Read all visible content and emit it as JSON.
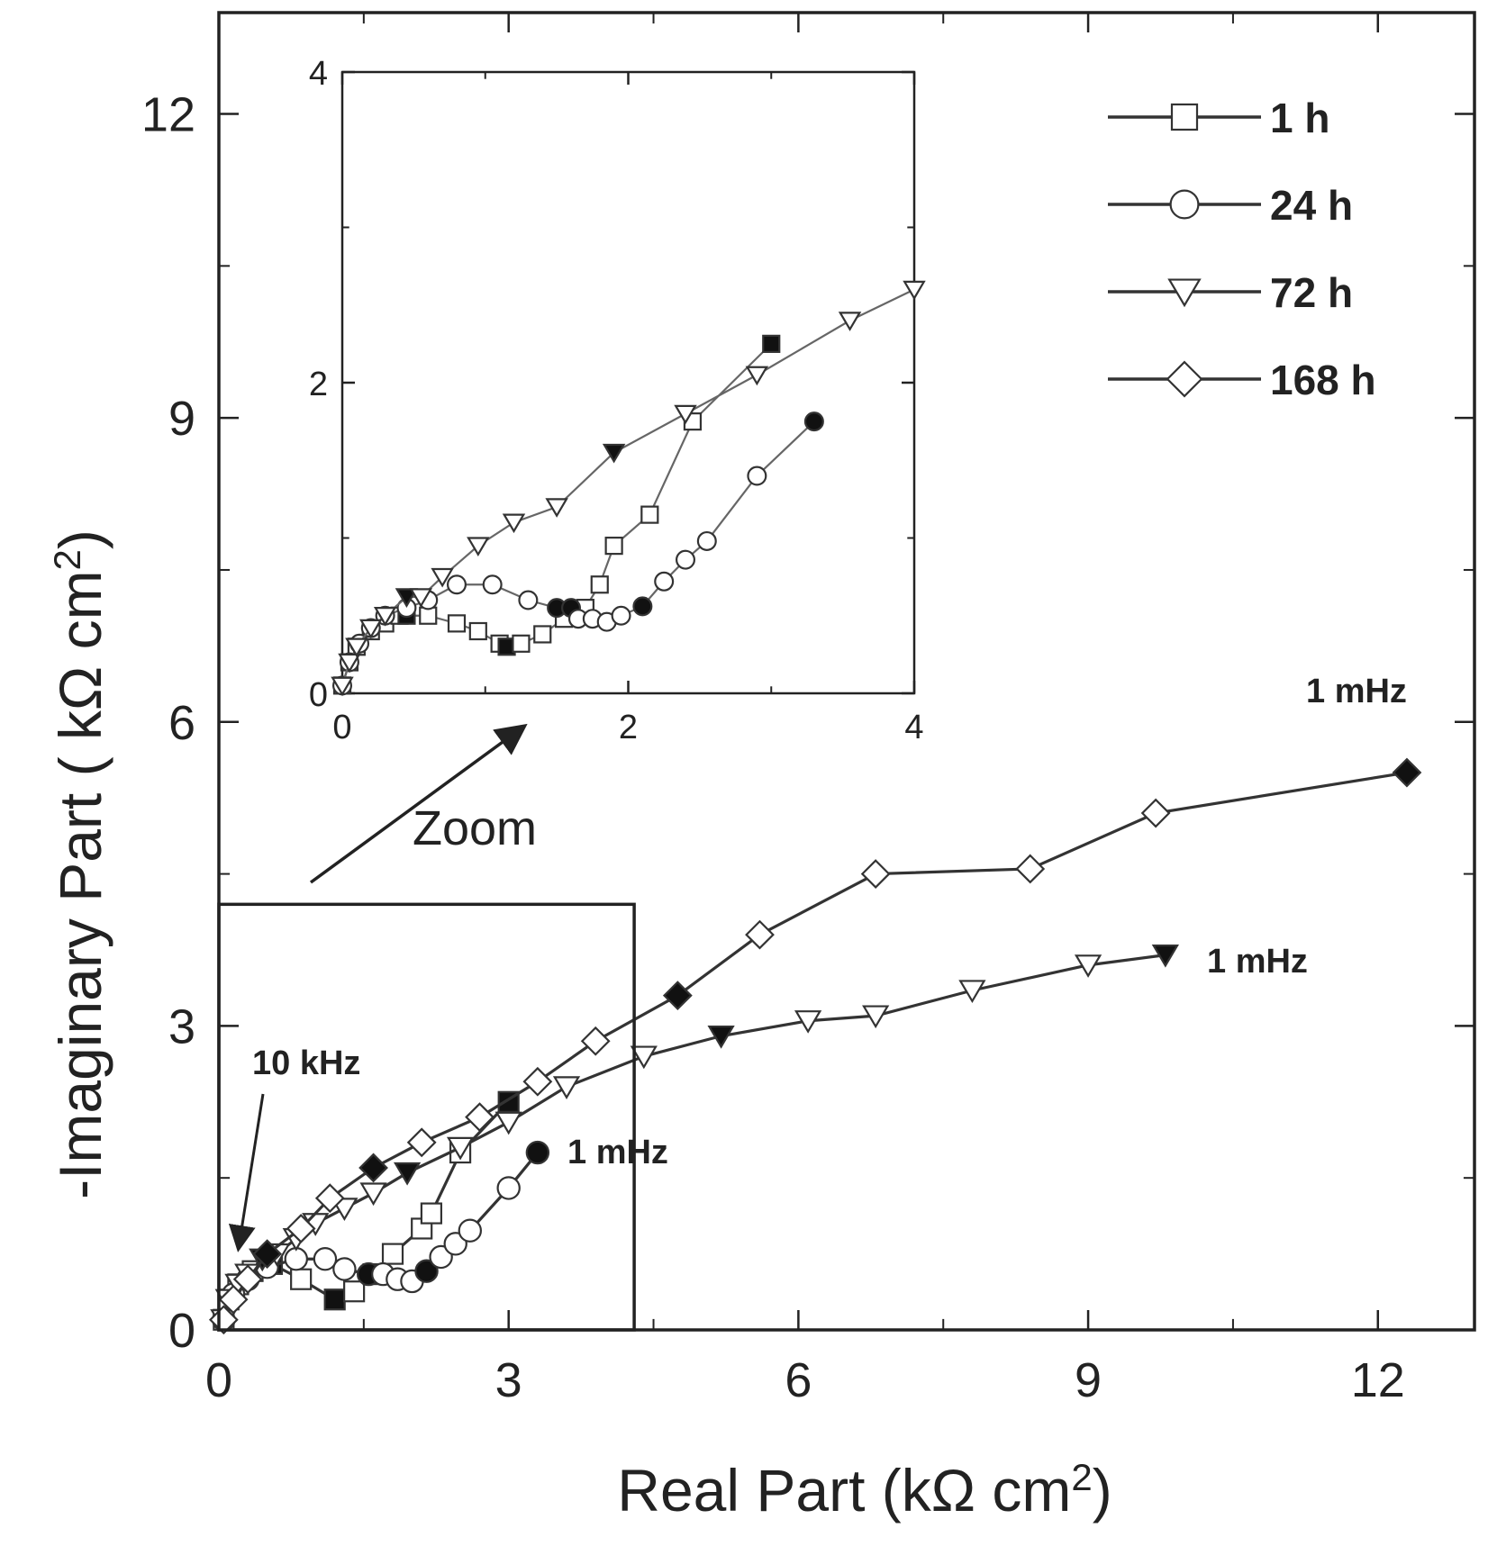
{
  "chart_data": [
    {
      "type": "line",
      "role": "main",
      "xlabel": "Real Part (kΩ cm²)",
      "ylabel": "-Imaginary Part ( kΩ cm²)",
      "xlim": [
        0,
        13
      ],
      "ylim": [
        0,
        13
      ],
      "xticks": [
        "0",
        "3",
        "6",
        "9",
        "12"
      ],
      "yticks": [
        "0",
        "3",
        "6",
        "9",
        "12"
      ],
      "legend": [
        "1 h",
        "24 h",
        "72 h",
        "168 h"
      ],
      "legend_position": "top-right",
      "series": [
        {
          "name": "1 h",
          "marker": "square",
          "x": [
            0.05,
            0.1,
            0.2,
            0.35,
            0.55,
            0.85,
            1.2,
            1.4,
            1.6,
            1.8,
            2.1,
            2.2,
            2.5,
            3.0
          ],
          "y": [
            0.1,
            0.3,
            0.45,
            0.58,
            0.65,
            0.5,
            0.3,
            0.38,
            0.55,
            0.75,
            1.0,
            1.15,
            1.75,
            2.25
          ],
          "filled": [
            false,
            false,
            false,
            false,
            true,
            false,
            true,
            false,
            false,
            false,
            false,
            false,
            false,
            true
          ]
        },
        {
          "name": "24 h",
          "marker": "circle",
          "x": [
            0.05,
            0.15,
            0.3,
            0.5,
            0.8,
            1.1,
            1.3,
            1.55,
            1.7,
            1.85,
            2.0,
            2.15,
            2.3,
            2.45,
            2.6,
            3.0,
            3.3
          ],
          "y": [
            0.1,
            0.35,
            0.5,
            0.62,
            0.7,
            0.7,
            0.6,
            0.55,
            0.55,
            0.5,
            0.48,
            0.58,
            0.72,
            0.85,
            0.98,
            1.4,
            1.75
          ],
          "filled": [
            false,
            false,
            false,
            false,
            false,
            false,
            false,
            true,
            false,
            false,
            false,
            true,
            false,
            false,
            false,
            false,
            true
          ]
        },
        {
          "name": "72 h",
          "marker": "triangle-down",
          "x": [
            0.05,
            0.1,
            0.2,
            0.3,
            0.45,
            0.6,
            0.8,
            1.0,
            1.3,
            1.6,
            1.95,
            2.5,
            3.0,
            3.6,
            4.4,
            5.2,
            6.1,
            6.8,
            7.8,
            9.0,
            9.8
          ],
          "y": [
            0.1,
            0.3,
            0.45,
            0.55,
            0.7,
            0.75,
            0.9,
            1.05,
            1.2,
            1.35,
            1.55,
            1.8,
            2.05,
            2.4,
            2.7,
            2.9,
            3.05,
            3.1,
            3.35,
            3.6,
            3.7
          ],
          "filled": [
            false,
            false,
            false,
            false,
            true,
            false,
            false,
            false,
            false,
            false,
            true,
            false,
            false,
            false,
            false,
            true,
            false,
            false,
            false,
            false,
            true
          ]
        },
        {
          "name": "168 h",
          "marker": "diamond",
          "x": [
            0.05,
            0.15,
            0.3,
            0.5,
            0.85,
            1.15,
            1.6,
            2.1,
            2.7,
            3.3,
            3.9,
            4.75,
            5.6,
            6.8,
            8.4,
            9.7,
            12.3
          ],
          "y": [
            0.1,
            0.3,
            0.5,
            0.75,
            1.0,
            1.3,
            1.6,
            1.85,
            2.1,
            2.45,
            2.85,
            3.3,
            3.9,
            4.5,
            4.55,
            5.1,
            5.5
          ],
          "filled": [
            false,
            false,
            false,
            true,
            false,
            false,
            true,
            false,
            false,
            false,
            false,
            true,
            false,
            false,
            false,
            false,
            true
          ]
        }
      ],
      "annotations": [
        {
          "text": "10 kHz",
          "x": 0.2,
          "y": 0.7
        },
        {
          "text": "1 mHz",
          "x": 3.3,
          "y": 1.75
        },
        {
          "text": "1 mHz",
          "x": 9.8,
          "y": 3.7
        },
        {
          "text": "1 mHz",
          "x": 12.3,
          "y": 5.5
        },
        {
          "text": "Zoom"
        }
      ],
      "zoom_box": {
        "xlim": [
          0,
          4.3
        ],
        "ylim": [
          0,
          4.2
        ]
      }
    },
    {
      "type": "line",
      "role": "inset",
      "xlim": [
        0,
        4
      ],
      "ylim": [
        0,
        4
      ],
      "xticks": [
        "0",
        "2",
        "4"
      ],
      "yticks": [
        "0",
        "2",
        "4"
      ],
      "series": [
        {
          "name": "1 h",
          "marker": "square",
          "x": [
            0.0,
            0.05,
            0.1,
            0.2,
            0.3,
            0.4,
            0.45,
            0.6,
            0.8,
            0.95,
            1.1,
            1.15,
            1.25,
            1.4,
            1.55,
            1.7,
            1.8,
            1.9,
            2.15,
            2.45,
            3.0
          ],
          "y": [
            0.05,
            0.2,
            0.3,
            0.4,
            0.45,
            0.5,
            0.5,
            0.5,
            0.45,
            0.4,
            0.32,
            0.3,
            0.32,
            0.38,
            0.48,
            0.55,
            0.7,
            0.95,
            1.15,
            1.75,
            2.25
          ],
          "filled": [
            false,
            false,
            false,
            false,
            false,
            false,
            true,
            false,
            false,
            false,
            false,
            true,
            false,
            false,
            false,
            false,
            false,
            false,
            false,
            false,
            true
          ]
        },
        {
          "name": "24 h",
          "marker": "circle",
          "x": [
            0.0,
            0.05,
            0.12,
            0.2,
            0.3,
            0.45,
            0.6,
            0.8,
            1.05,
            1.3,
            1.5,
            1.6,
            1.65,
            1.75,
            1.85,
            1.95,
            2.1,
            2.25,
            2.4,
            2.55,
            2.9,
            3.3
          ],
          "y": [
            0.05,
            0.2,
            0.32,
            0.42,
            0.5,
            0.55,
            0.6,
            0.7,
            0.7,
            0.6,
            0.55,
            0.55,
            0.48,
            0.48,
            0.46,
            0.5,
            0.56,
            0.72,
            0.86,
            0.98,
            1.4,
            1.75
          ],
          "filled": [
            false,
            false,
            false,
            false,
            false,
            false,
            false,
            false,
            false,
            false,
            true,
            true,
            false,
            false,
            false,
            false,
            true,
            false,
            false,
            false,
            false,
            true
          ]
        },
        {
          "name": "72 h",
          "marker": "triangle-down",
          "x": [
            0.0,
            0.05,
            0.1,
            0.2,
            0.3,
            0.45,
            0.55,
            0.7,
            0.95,
            1.2,
            1.5,
            1.9,
            2.4,
            2.9,
            3.55,
            4.0
          ],
          "y": [
            0.05,
            0.2,
            0.3,
            0.42,
            0.5,
            0.62,
            0.62,
            0.75,
            0.95,
            1.1,
            1.2,
            1.55,
            1.8,
            2.05,
            2.4,
            2.6
          ],
          "filled": [
            false,
            false,
            false,
            false,
            false,
            true,
            false,
            false,
            false,
            false,
            false,
            true,
            false,
            false,
            false,
            false
          ]
        }
      ]
    }
  ]
}
